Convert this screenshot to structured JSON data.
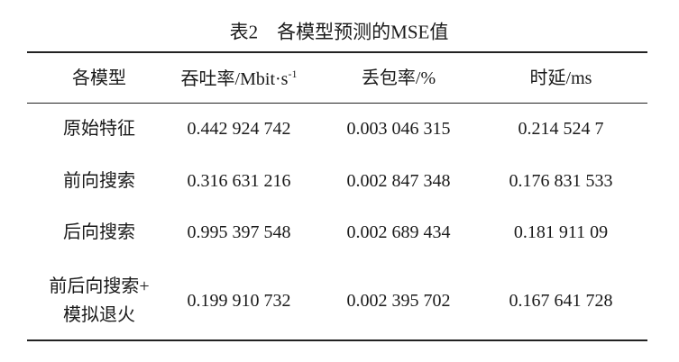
{
  "title": "表2　各模型预测的MSE值",
  "table": {
    "header": [
      "各模型",
      {
        "text": "吞吐率/Mbit·s",
        "sup": "-1"
      },
      "丢包率/%",
      "时延/ms"
    ],
    "rows": [
      [
        "原始特征",
        "0.442 924 742",
        "0.003 046 315",
        "0.214 524 7"
      ],
      [
        "前向搜索",
        "0.316 631 216",
        "0.002 847 348",
        "0.176 831 533"
      ],
      [
        "后向搜索",
        "0.995 397 548",
        "0.002 689 434",
        "0.181 911 09"
      ],
      [
        [
          "前后向搜索+",
          "模拟退火"
        ],
        "0.199 910 732",
        "0.002 395 702",
        "0.167 641 728"
      ]
    ]
  }
}
